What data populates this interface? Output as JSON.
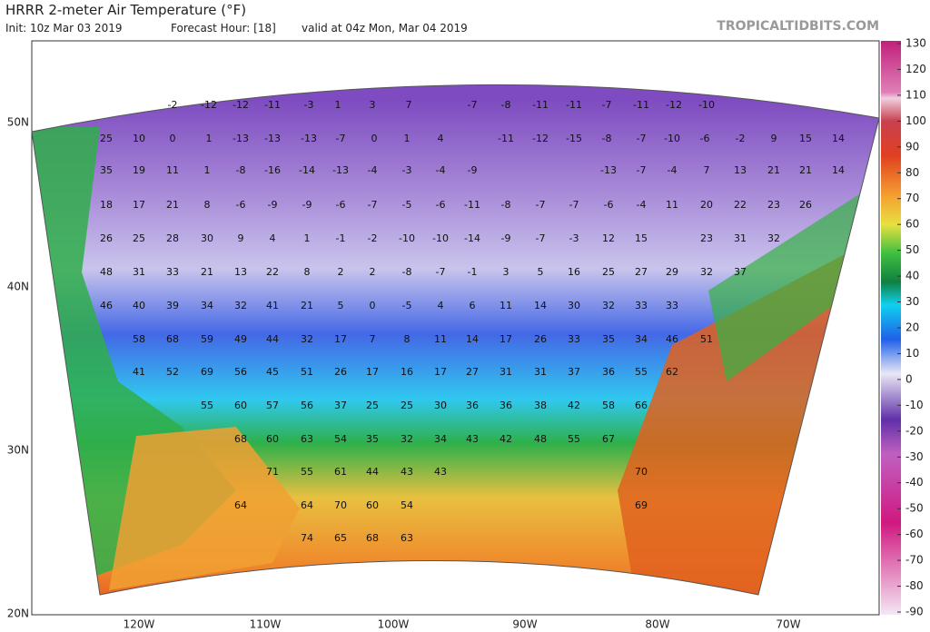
{
  "header": {
    "title": "HRRR 2-meter Air Temperature (°F)",
    "init": "Init: 10z Mar 03 2019",
    "forecast_hour": "Forecast Hour: [18]",
    "valid": "valid at 04z Mon, Mar 04 2019",
    "brand": "TROPICALTIDBITS.COM"
  },
  "latitude_labels": [
    "50N",
    "40N",
    "30N",
    "20N"
  ],
  "longitude_labels": [
    "120W",
    "110W",
    "100W",
    "90W",
    "80W",
    "70W"
  ],
  "colorbar_ticks": [
    130,
    120,
    110,
    100,
    90,
    80,
    70,
    60,
    50,
    40,
    30,
    20,
    10,
    0,
    -10,
    -20,
    -30,
    -40,
    -50,
    -60,
    -70,
    -80,
    -90
  ],
  "station_values": [
    [
      -2,
      -12,
      -12,
      -11,
      -3,
      1,
      3,
      7,
      -7,
      -8,
      -11,
      -11,
      -7,
      -11,
      -12,
      -10
    ],
    [
      25,
      10,
      0,
      1,
      -13,
      -13,
      -13,
      -7,
      0,
      1,
      4,
      -11,
      -12,
      -15,
      -8,
      -7,
      -10,
      -6,
      -2,
      9,
      15,
      14
    ],
    [
      35,
      19,
      11,
      1,
      -8,
      -16,
      -14,
      -13,
      -4,
      -3,
      -4,
      -9,
      -13,
      -7,
      -4,
      7,
      13,
      21,
      21,
      14
    ],
    [
      18,
      17,
      21,
      8,
      -6,
      -9,
      -9,
      -6,
      -7,
      -5,
      -6,
      -11,
      -8,
      -7,
      -7,
      -6,
      -4,
      11,
      20,
      22,
      23,
      26
    ],
    [
      26,
      25,
      28,
      30,
      9,
      4,
      1,
      -1,
      -2,
      -10,
      -10,
      -14,
      -9,
      -7,
      -3,
      12,
      15,
      23,
      31,
      32
    ],
    [
      48,
      31,
      33,
      21,
      13,
      22,
      8,
      2,
      2,
      -8,
      -7,
      -1,
      3,
      5,
      16,
      25,
      27,
      29,
      32,
      37
    ],
    [
      46,
      40,
      39,
      34,
      32,
      41,
      21,
      5,
      0,
      -5,
      4,
      6,
      11,
      14,
      30,
      32,
      33,
      33
    ],
    [
      58,
      68,
      59,
      49,
      44,
      32,
      17,
      7,
      8,
      11,
      14,
      17,
      26,
      33,
      35,
      34,
      46,
      51
    ],
    [
      41,
      52,
      69,
      56,
      45,
      51,
      26,
      17,
      16,
      17,
      27,
      31,
      31,
      37,
      36,
      55,
      62
    ],
    [
      55,
      60,
      57,
      56,
      37,
      25,
      25,
      30,
      36,
      36,
      38,
      42,
      58,
      66
    ],
    [
      68,
      60,
      63,
      54,
      35,
      32,
      34,
      43,
      42,
      48,
      55,
      67
    ],
    [
      71,
      55,
      61,
      44,
      43,
      43,
      70
    ],
    [
      64,
      64,
      70,
      60,
      54,
      69
    ],
    [
      74,
      65,
      68,
      63
    ]
  ]
}
